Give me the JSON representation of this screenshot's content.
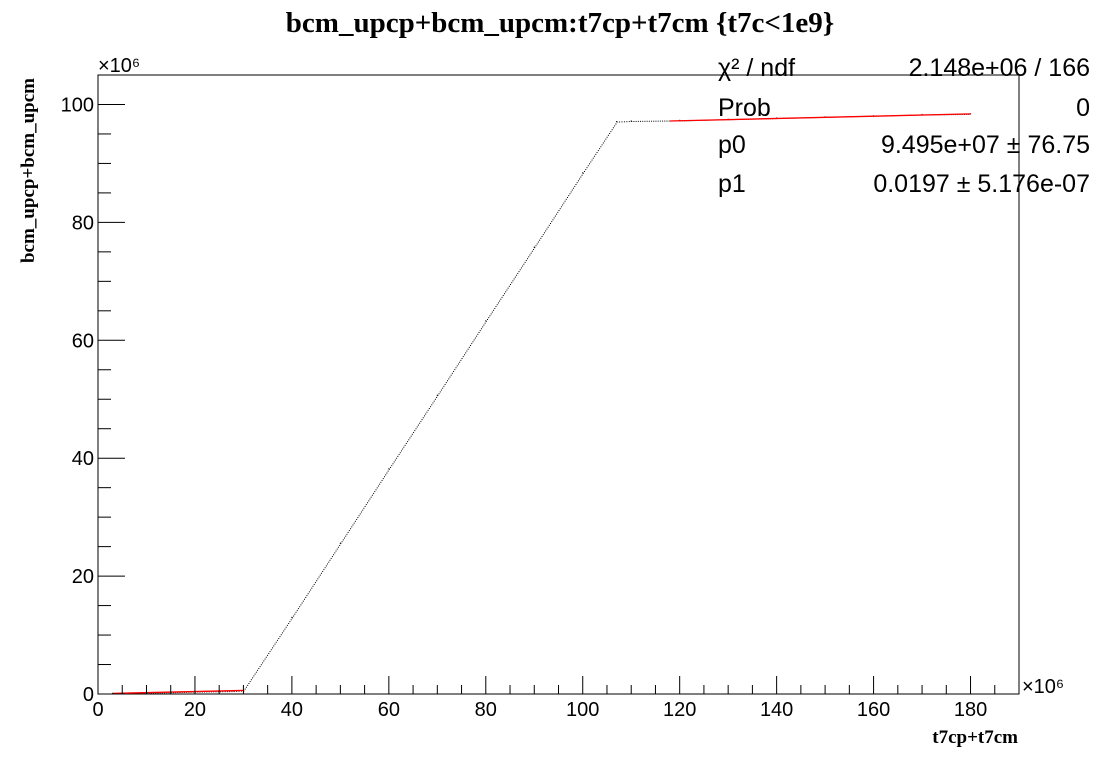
{
  "chart_data": {
    "type": "scatter",
    "title": "bcm_upcp+bcm_upcm:t7cp+t7cm {t7c<1e9}",
    "xlabel": "t7cp+t7cm",
    "ylabel": "bcm_upcp+bcm_upcm",
    "x_multiplier": "×10⁶",
    "y_multiplier": "×10⁶",
    "xlim": [
      0,
      190
    ],
    "ylim": [
      0,
      105
    ],
    "x_ticks": [
      "0",
      "20",
      "40",
      "60",
      "80",
      "100",
      "120",
      "140",
      "160",
      "180"
    ],
    "y_ticks": [
      "0",
      "20",
      "40",
      "60",
      "80",
      "100"
    ],
    "x_tick_values": [
      0,
      20,
      40,
      60,
      80,
      100,
      120,
      140,
      160,
      180
    ],
    "y_tick_values": [
      0,
      20,
      40,
      60,
      80,
      100
    ],
    "x_minor_step": 5,
    "y_minor_step": 5,
    "grid": false,
    "series": [
      {
        "color": "#000000",
        "x": [
          3,
          10,
          20,
          28,
          30,
          40,
          50,
          60,
          70,
          80,
          90,
          100,
          107,
          110,
          120,
          130,
          140,
          150,
          160,
          170,
          180
        ],
        "y": [
          0.1,
          0.2,
          0.4,
          0.5,
          0.6,
          13.0,
          25.6,
          38.2,
          50.7,
          63.3,
          75.8,
          88.4,
          97.1,
          97.2,
          97.3,
          97.5,
          97.7,
          97.9,
          98.1,
          98.3,
          98.4
        ]
      }
    ],
    "fits": [
      {
        "color": "#ff0000",
        "x": [
          3,
          30
        ],
        "y": [
          0.1,
          0.6
        ]
      },
      {
        "color": "#ff0000",
        "x": [
          118,
          180
        ],
        "y": [
          97.2,
          98.4
        ]
      }
    ],
    "stats_box": {
      "rows": [
        {
          "label": "χ² / ndf",
          "value": "2.148e+06 / 166"
        },
        {
          "label": "Prob",
          "value": "0"
        },
        {
          "label": "p0",
          "value": "9.495e+07 ± 76.75"
        },
        {
          "label": "p1",
          "value": "0.0197 ± 5.176e-07"
        }
      ]
    }
  }
}
